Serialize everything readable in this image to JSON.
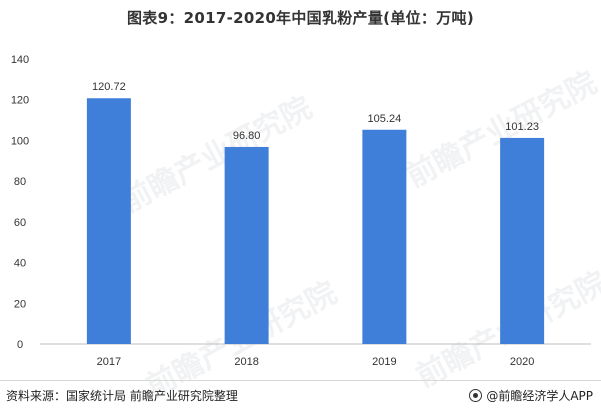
{
  "title": "图表9：2017-2020年中国乳粉产量(单位：万吨)",
  "watermark_text": "前瞻产业研究院",
  "source": "资料来源：国家统计局 前瞻产业研究院整理",
  "credit": "@前瞻经济学人APP",
  "colors": {
    "bar": "#3f7fd9",
    "axis": "#bfbfbf",
    "grid": "#e6e6e6",
    "text": "#333333"
  },
  "chart_data": {
    "type": "bar",
    "title": "图表9：2017-2020年中国乳粉产量(单位：万吨)",
    "categories": [
      "2017",
      "2018",
      "2019",
      "2020"
    ],
    "values": [
      120.72,
      96.8,
      105.24,
      101.23
    ],
    "data_labels": [
      "120.72",
      "96.80",
      "105.24",
      "101.23"
    ],
    "ylim": [
      0,
      140
    ],
    "yticks": [
      0,
      20,
      40,
      60,
      80,
      100,
      120,
      140
    ],
    "grid": false,
    "legend": "none",
    "xlabel": "",
    "ylabel": ""
  }
}
